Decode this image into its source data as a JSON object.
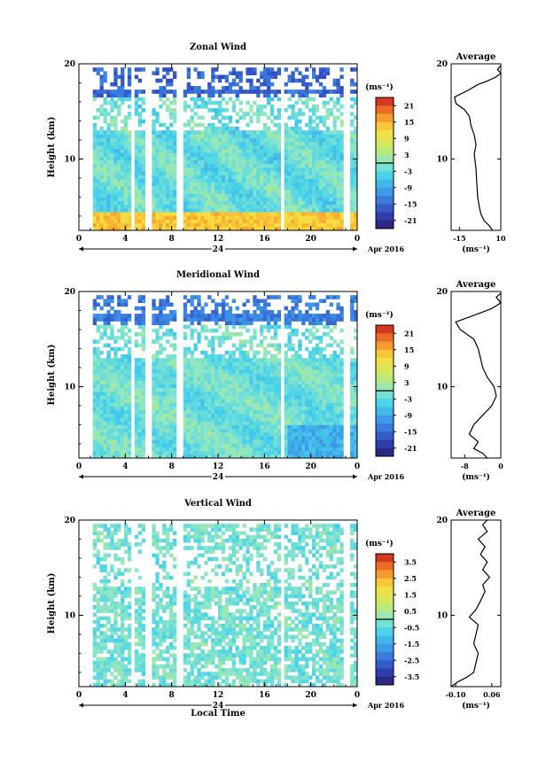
{
  "chart_data": [
    {
      "type": "heatmap",
      "title": "Zonal Wind",
      "ylabel": "Height (km)",
      "unit_label": "(ms⁻¹)",
      "y_ticks": [
        "20",
        "10"
      ],
      "x_ticks": [
        "0",
        "4",
        "8",
        "12",
        "16",
        "20",
        "0"
      ],
      "day_label": "24",
      "month_label": "Apr 2016",
      "ylim": [
        2.5,
        20
      ],
      "xlim": [
        0,
        24
      ],
      "colorbar_ticks": [
        "21",
        "15",
        "9",
        "3",
        "-3",
        "-9",
        "-15",
        "-21"
      ],
      "colorbar_range": [
        -24,
        24
      ],
      "profile": {
        "title": "Average",
        "x_ticks": [
          "-15",
          "10"
        ],
        "xlabel": "(ms⁻¹)",
        "y_ticks": [
          "20",
          "10"
        ],
        "xlim": [
          -20,
          10
        ],
        "points": [
          [
            5,
            2.5
          ],
          [
            3,
            3.0
          ],
          [
            0,
            3.5
          ],
          [
            -2,
            4.2
          ],
          [
            -3,
            5.0
          ],
          [
            -4,
            6.0
          ],
          [
            -4.5,
            7.5
          ],
          [
            -5,
            9.0
          ],
          [
            -6,
            10.5
          ],
          [
            -5,
            11.5
          ],
          [
            -6,
            12.5
          ],
          [
            -8,
            13.5
          ],
          [
            -9,
            14.5
          ],
          [
            -12,
            15.2
          ],
          [
            -17,
            15.8
          ],
          [
            -18,
            16.5
          ],
          [
            -10,
            17.2
          ],
          [
            -4,
            17.8
          ],
          [
            2,
            18.2
          ],
          [
            7,
            18.6
          ],
          [
            10,
            19.0
          ],
          [
            8,
            19.4
          ],
          [
            10,
            19.8
          ]
        ]
      }
    },
    {
      "type": "heatmap",
      "title": "Meridional Wind",
      "ylabel": "Height (km)",
      "unit_label": "(ms⁻¹)",
      "y_ticks": [
        "20",
        "10"
      ],
      "x_ticks": [
        "0",
        "4",
        "8",
        "12",
        "16",
        "20",
        "0"
      ],
      "day_label": "24",
      "month_label": "Apr 2016",
      "ylim": [
        2.5,
        20
      ],
      "xlim": [
        0,
        24
      ],
      "colorbar_ticks": [
        "21",
        "15",
        "9",
        "3",
        "-3",
        "-9",
        "-15",
        "-21"
      ],
      "colorbar_range": [
        -24,
        24
      ],
      "profile": {
        "title": "Average",
        "x_ticks": [
          "-8",
          "0"
        ],
        "xlabel": "(ms⁻¹)",
        "y_ticks": [
          "20",
          "10"
        ],
        "xlim": [
          -11,
          0
        ],
        "points": [
          [
            -3,
            2.5
          ],
          [
            -4,
            3.0
          ],
          [
            -6,
            3.5
          ],
          [
            -5,
            4.2
          ],
          [
            -7,
            5.0
          ],
          [
            -6,
            6.0
          ],
          [
            -4,
            7.0
          ],
          [
            -2,
            8.0
          ],
          [
            -1,
            9.0
          ],
          [
            -1.5,
            10.0
          ],
          [
            -3,
            11.0
          ],
          [
            -4,
            12.0
          ],
          [
            -4.5,
            13.0
          ],
          [
            -5,
            14.0
          ],
          [
            -6,
            15.0
          ],
          [
            -9,
            16.0
          ],
          [
            -10,
            16.8
          ],
          [
            -6,
            17.5
          ],
          [
            -2,
            18.2
          ],
          [
            0,
            18.8
          ],
          [
            -1,
            19.4
          ],
          [
            0,
            19.8
          ]
        ]
      }
    },
    {
      "type": "heatmap",
      "title": "Vertical Wind",
      "ylabel": "Height (km)",
      "xlabel": "Local Time",
      "unit_label": "(ms⁻¹)",
      "y_ticks": [
        "20",
        "10"
      ],
      "x_ticks": [
        "0",
        "4",
        "8",
        "12",
        "16",
        "20",
        "0"
      ],
      "day_label": "24",
      "month_label": "Apr 2016",
      "ylim": [
        2.5,
        20
      ],
      "xlim": [
        0,
        24
      ],
      "colorbar_ticks": [
        "3.5",
        "2.5",
        "1.5",
        "0.5",
        "-0.5",
        "-1.5",
        "-2.5",
        "-3.5"
      ],
      "colorbar_range": [
        -4,
        4
      ],
      "profile": {
        "title": "Average",
        "x_ticks": [
          "-0.10",
          "0.06"
        ],
        "xlabel": "(ms⁻¹)",
        "y_ticks": [
          "20",
          "10"
        ],
        "xlim": [
          -0.12,
          0.1
        ],
        "points": [
          [
            -0.12,
            2.5
          ],
          [
            -0.09,
            3.0
          ],
          [
            -0.05,
            3.5
          ],
          [
            -0.02,
            4.0
          ],
          [
            -0.01,
            5.0
          ],
          [
            0.0,
            6.0
          ],
          [
            -0.02,
            7.0
          ],
          [
            -0.01,
            8.0
          ],
          [
            0.0,
            9.0
          ],
          [
            -0.04,
            9.8
          ],
          [
            -0.01,
            10.6
          ],
          [
            0.01,
            11.5
          ],
          [
            0.03,
            12.5
          ],
          [
            0.02,
            13.2
          ],
          [
            0.05,
            14.0
          ],
          [
            0.02,
            14.8
          ],
          [
            0.04,
            15.6
          ],
          [
            0.01,
            16.4
          ],
          [
            0.03,
            17.2
          ],
          [
            0.0,
            18.0
          ],
          [
            0.04,
            18.8
          ],
          [
            0.02,
            19.5
          ],
          [
            0.04,
            20.0
          ]
        ]
      }
    }
  ]
}
